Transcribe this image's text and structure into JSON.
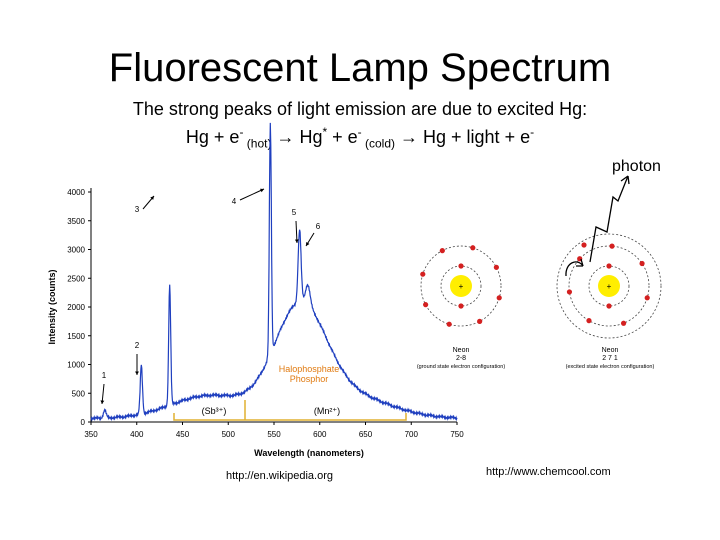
{
  "slide": {
    "title": "Fluorescent Lamp Spectrum",
    "subtitle_line1": "The strong peaks of light emission are due to excited Hg:",
    "equation": {
      "p1": "Hg + e",
      "sup1": "-",
      "sub1": " (hot)",
      "p2": " → Hg",
      "sup2": "*",
      "p3": " + e",
      "sup3": "-",
      "sub3": " (cold)",
      "p4": " → Hg + light + e",
      "sup4": "-"
    },
    "photon_label": "photon",
    "credit_left": "http://en.wikipedia.org",
    "credit_right": "http://www.chemcool.com"
  },
  "spectrum": {
    "ylabel": "Intensity (counts)",
    "xlabel": "Wavelength (nanometers)",
    "yticks": [
      "0",
      "500",
      "1000",
      "1500",
      "2000",
      "2500",
      "3000",
      "3500",
      "4000"
    ],
    "xticks": [
      "350",
      "400",
      "450",
      "500",
      "550",
      "600",
      "650",
      "700",
      "750"
    ],
    "peak_labels": [
      "1",
      "2",
      "3",
      "4",
      "5",
      "6"
    ],
    "phosphor_label_1": "Halophosphate",
    "phosphor_label_2": "Phosphor",
    "sb_label": "(Sb³⁺)",
    "mn_label": "(Mn²⁺)",
    "line_color": "#1f3fbf",
    "annotation_color": "#e07a10",
    "bracket_color": "#e0b030"
  },
  "atoms": {
    "left_name": "Neon",
    "left_config": "2-8",
    "left_caption": "(ground state electron configuration)",
    "right_name": "Neon",
    "right_config": "2 7 1",
    "right_caption": "(excited state electron configuration)",
    "nucleus_symbol": "+",
    "nucleus_color": "#ffee00",
    "electron_color": "#d42020"
  }
}
